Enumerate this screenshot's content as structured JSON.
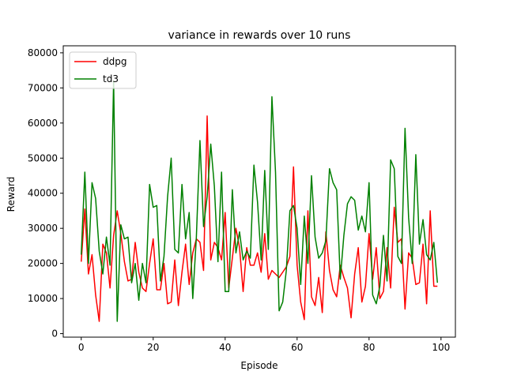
{
  "chart_data": {
    "type": "line",
    "title": "variance in rewards over 10 runs",
    "xlabel": "Episode",
    "ylabel": "Reward",
    "xlim": [
      -5,
      104
    ],
    "ylim": [
      -1000,
      82000
    ],
    "xticks": [
      0,
      20,
      40,
      60,
      80,
      100
    ],
    "yticks": [
      0,
      10000,
      20000,
      30000,
      40000,
      50000,
      60000,
      70000,
      80000
    ],
    "legend_position": "top-left",
    "series": [
      {
        "name": "ddpg",
        "color": "#ff0000",
        "x": [
          0,
          1,
          2,
          3,
          4,
          5,
          6,
          7,
          8,
          9,
          10,
          11,
          12,
          13,
          14,
          15,
          16,
          17,
          18,
          19,
          20,
          21,
          22,
          23,
          24,
          25,
          26,
          27,
          28,
          29,
          30,
          31,
          32,
          33,
          34,
          35,
          36,
          37,
          38,
          39,
          40,
          41,
          42,
          43,
          44,
          45,
          46,
          47,
          48,
          49,
          50,
          51,
          52,
          53,
          54,
          55,
          56,
          57,
          58,
          59,
          60,
          61,
          62,
          63,
          64,
          65,
          66,
          67,
          68,
          69,
          70,
          71,
          72,
          73,
          74,
          75,
          76,
          77,
          78,
          79,
          80,
          81,
          82,
          83,
          84,
          85,
          86,
          87,
          88,
          89,
          90,
          91,
          92,
          93,
          94,
          95,
          96,
          97,
          98,
          99
        ],
        "values": [
          20500,
          35500,
          17000,
          22500,
          11000,
          3500,
          25500,
          23000,
          13000,
          28000,
          35000,
          28500,
          20500,
          15000,
          15500,
          26000,
          17500,
          13000,
          12000,
          20000,
          27000,
          12500,
          12500,
          20000,
          8500,
          9000,
          21000,
          8000,
          17500,
          25500,
          14000,
          23000,
          27000,
          26000,
          18000,
          62000,
          21000,
          26000,
          24500,
          21000,
          34500,
          13000,
          21500,
          30000,
          24500,
          12000,
          24500,
          19500,
          19500,
          23000,
          17500,
          28500,
          15500,
          18000,
          17000,
          16000,
          17500,
          19000,
          22000,
          47500,
          19500,
          9000,
          4000,
          35000,
          10500,
          8000,
          16000,
          6000,
          29000,
          18000,
          12500,
          10500,
          19500,
          16000,
          13000,
          4500,
          17000,
          24500,
          9000,
          13500,
          28500,
          15500,
          24500,
          10000,
          12000,
          24500,
          13000,
          36000,
          26000,
          27000,
          7000,
          23000,
          21500,
          14000,
          14500,
          25500,
          8500,
          35000,
          13500,
          13500
        ]
      },
      {
        "name": "td3",
        "color": "#008000",
        "x": [
          0,
          1,
          2,
          3,
          4,
          5,
          6,
          7,
          8,
          9,
          10,
          11,
          12,
          13,
          14,
          15,
          16,
          17,
          18,
          19,
          20,
          21,
          22,
          23,
          24,
          25,
          26,
          27,
          28,
          29,
          30,
          31,
          32,
          33,
          34,
          35,
          36,
          37,
          38,
          39,
          40,
          41,
          42,
          43,
          44,
          45,
          46,
          47,
          48,
          49,
          50,
          51,
          52,
          53,
          54,
          55,
          56,
          57,
          58,
          59,
          60,
          61,
          62,
          63,
          64,
          65,
          66,
          67,
          68,
          69,
          70,
          71,
          72,
          73,
          74,
          75,
          76,
          77,
          78,
          79,
          80,
          81,
          82,
          83,
          84,
          85,
          86,
          87,
          88,
          89,
          90,
          91,
          92,
          93,
          94,
          95,
          96,
          97,
          98,
          99
        ],
        "values": [
          22500,
          46000,
          20000,
          43000,
          38500,
          23500,
          17000,
          27500,
          19500,
          72000,
          3500,
          31000,
          27000,
          27500,
          14500,
          20000,
          9500,
          20000,
          14500,
          42500,
          36000,
          36500,
          15000,
          22000,
          39000,
          50000,
          24000,
          23000,
          42500,
          27000,
          34500,
          10000,
          27500,
          55000,
          30500,
          39000,
          54000,
          42000,
          20500,
          46000,
          12000,
          12000,
          41000,
          23000,
          29000,
          21000,
          23500,
          21500,
          48000,
          37500,
          21000,
          46500,
          24000,
          67500,
          46000,
          6500,
          9000,
          18000,
          35000,
          36500,
          30000,
          14000,
          33500,
          20000,
          45000,
          27500,
          21500,
          23000,
          26500,
          47000,
          43000,
          41000,
          15500,
          28000,
          37000,
          39000,
          38000,
          29500,
          33500,
          29000,
          43000,
          11000,
          8500,
          13500,
          28000,
          15000,
          49500,
          47000,
          22000,
          20000,
          58500,
          33000,
          20000,
          51000,
          25500,
          32500,
          22500,
          21000,
          26000,
          14500
        ]
      }
    ]
  }
}
